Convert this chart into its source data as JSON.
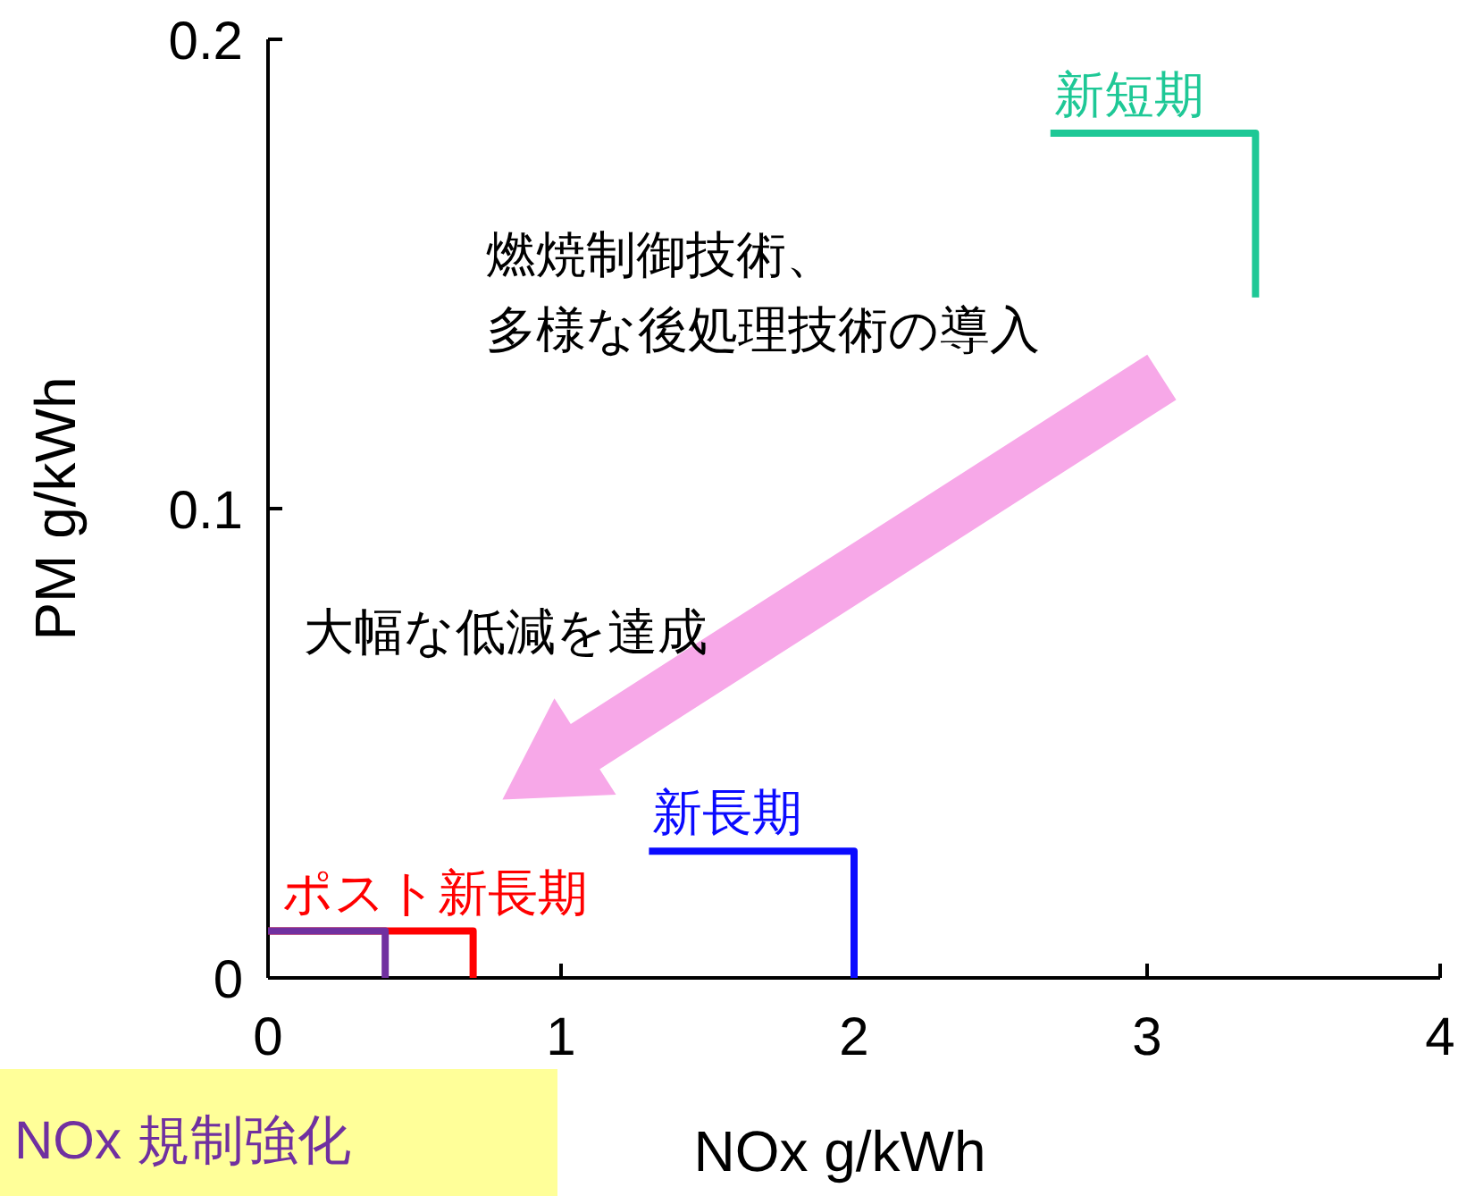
{
  "chart_data": {
    "type": "line",
    "xlabel": "NOx  g/kWh",
    "ylabel": "PM  g/kWh",
    "xlim": [
      0,
      4
    ],
    "xticks": [
      0,
      1,
      2,
      3,
      4
    ],
    "ylim": [
      0,
      0.2
    ],
    "yticks": [
      0,
      0.1,
      0.2
    ],
    "grid": false,
    "marker": "none",
    "line_style": "solid",
    "series": [
      {
        "name": "新短期",
        "color": "#1ec896",
        "x": [
          2.67,
          3.37,
          3.37
        ],
        "values": [
          0.18,
          0.18,
          0.145
        ]
      },
      {
        "name": "新長期",
        "color": "#0a0aff",
        "x": [
          1.3,
          2.0,
          2.0
        ],
        "values": [
          0.027,
          0.027,
          0
        ]
      },
      {
        "name": "ポスト新長期",
        "color": "#ff0000",
        "x": [
          0,
          0.7,
          0.7
        ],
        "values": [
          0.01,
          0.01,
          0
        ]
      },
      {
        "name": "NOx 規制強化",
        "color": "#7030a0",
        "x": [
          0,
          0.4,
          0.4
        ],
        "values": [
          0.01,
          0.01,
          0
        ]
      }
    ],
    "annotations": [
      "燃焼制御技術、",
      "多様な後処理技術の導入",
      "大幅な低減を達成"
    ]
  }
}
